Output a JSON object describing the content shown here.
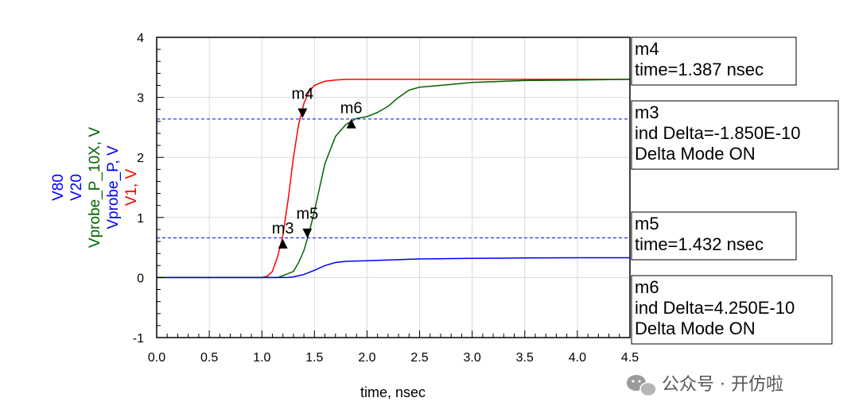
{
  "chart_data": {
    "type": "line",
    "xlabel": "time, nsec",
    "xlim": [
      0.0,
      4.5
    ],
    "ylim": [
      -1,
      4
    ],
    "x_ticks": [
      "0.0",
      "0.5",
      "1.0",
      "1.5",
      "2.0",
      "2.5",
      "3.0",
      "3.5",
      "4.0",
      "4.5"
    ],
    "y_ticks": [
      "-1",
      "0",
      "1",
      "2",
      "3",
      "4"
    ],
    "y_labels": [
      {
        "text": "V80",
        "color": "#0000ff"
      },
      {
        "text": "V20",
        "color": "#0000ff"
      },
      {
        "text": "Vprobe_P_10X, V",
        "color": "#006400"
      },
      {
        "text": "Vprobe_P, V",
        "color": "#0000ff"
      },
      {
        "text": "V1, V",
        "color": "#ff0000"
      }
    ],
    "series": [
      {
        "color": "#ff0000",
        "x": [
          0.0,
          1.0,
          1.05,
          1.1,
          1.15,
          1.2,
          1.25,
          1.3,
          1.35,
          1.4,
          1.45,
          1.5,
          1.6,
          1.7,
          1.8,
          2.0,
          3.0,
          4.0,
          4.5
        ],
        "y": [
          0.0,
          0.0,
          0.02,
          0.1,
          0.35,
          0.7,
          1.3,
          2.0,
          2.55,
          2.9,
          3.1,
          3.2,
          3.27,
          3.29,
          3.3,
          3.3,
          3.3,
          3.3,
          3.3
        ]
      },
      {
        "color": "#006400",
        "x": [
          0.0,
          1.15,
          1.2,
          1.3,
          1.35,
          1.4,
          1.45,
          1.5,
          1.55,
          1.6,
          1.7,
          1.8,
          1.9,
          2.0,
          2.1,
          2.2,
          2.3,
          2.4,
          2.5,
          2.7,
          3.0,
          3.5,
          4.0,
          4.5
        ],
        "y": [
          0.0,
          0.0,
          0.03,
          0.1,
          0.25,
          0.45,
          0.75,
          1.1,
          1.5,
          1.9,
          2.35,
          2.55,
          2.65,
          2.68,
          2.75,
          2.85,
          3.0,
          3.12,
          3.17,
          3.2,
          3.25,
          3.28,
          3.29,
          3.3
        ]
      },
      {
        "color": "#0000ff",
        "x": [
          0.0,
          1.25,
          1.3,
          1.4,
          1.5,
          1.6,
          1.7,
          1.8,
          2.0,
          2.5,
          3.0,
          3.5,
          4.0,
          4.5
        ],
        "y": [
          0.0,
          0.0,
          0.01,
          0.05,
          0.12,
          0.2,
          0.25,
          0.27,
          0.28,
          0.31,
          0.32,
          0.325,
          0.33,
          0.33
        ]
      }
    ],
    "reference_lines": [
      {
        "name": "V80",
        "y": 2.64,
        "color": "#0000ff"
      },
      {
        "name": "V20",
        "y": 0.66,
        "color": "#0000ff"
      }
    ],
    "markers": [
      {
        "name": "m3",
        "x": 1.2,
        "y": 0.55,
        "dir": "up"
      },
      {
        "name": "m4",
        "x": 1.387,
        "y": 2.75,
        "dir": "down"
      },
      {
        "name": "m5",
        "x": 1.432,
        "y": 0.75,
        "dir": "down"
      },
      {
        "name": "m6",
        "x": 1.85,
        "y": 2.55,
        "dir": "up"
      }
    ],
    "annotation_boxes": [
      {
        "lines": [
          "m4",
          "time=1.387 nsec"
        ]
      },
      {
        "lines": [
          "m3",
          "ind Delta=-1.850E-10",
          "Delta Mode ON"
        ]
      },
      {
        "lines": [
          "m5",
          "time=1.432 nsec"
        ]
      },
      {
        "lines": [
          "m6",
          "ind Delta=4.250E-10",
          "Delta Mode ON"
        ]
      }
    ]
  },
  "watermark": {
    "text": "公众号 · 开仿啦",
    "icon": "wechat-icon"
  }
}
